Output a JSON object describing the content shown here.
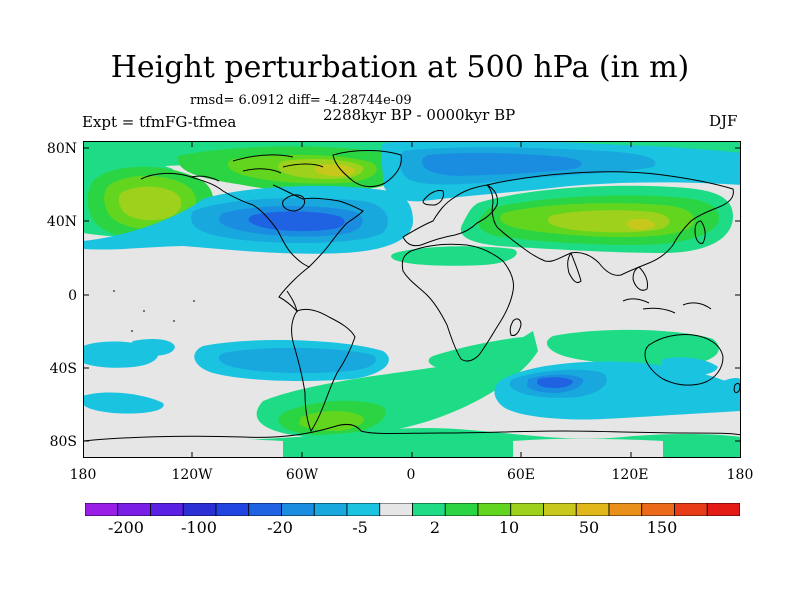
{
  "title": "Height perturbation at 500 hPa (in m)",
  "subtitle": {
    "stats": "rmsd= 6.0912 diff= -4.28744e-09",
    "period": "2288kyr BP - 0000kyr BP",
    "experiment": "Expt = tfmFG-tfmea",
    "season": "DJF"
  },
  "axes": {
    "y_ticks": [
      "80N",
      "40N",
      "0",
      "40S",
      "80S"
    ],
    "x_ticks": [
      "180",
      "120W",
      "60W",
      "0",
      "60E",
      "120E",
      "180"
    ]
  },
  "colorbar": {
    "labels": [
      "-200",
      "-100",
      "-20",
      "-5",
      "2",
      "10",
      "50",
      "150"
    ],
    "colors": [
      "#9a1ee6",
      "#7a1ee6",
      "#5a21e4",
      "#2b2fd4",
      "#2045e0",
      "#1f63e2",
      "#1b8de0",
      "#18a8de",
      "#1ac3e0",
      "#e6e6e6",
      "#1edc86",
      "#2bd443",
      "#62d61e",
      "#9dd11c",
      "#c8c81c",
      "#e0b61a",
      "#e8901a",
      "#ea6a1a",
      "#e83c18",
      "#e41a14"
    ]
  },
  "palette": {
    "ocean_bg": "#e6e6e6",
    "cyan": "#1ac3e0",
    "lightblue": "#18a8de",
    "blue": "#1f63e2",
    "darkblue": "#2045e0",
    "aqua_green": "#1edc86",
    "green": "#2bd443",
    "lime": "#62d61e",
    "yellow_green": "#9dd11c",
    "olive": "#c8c81c",
    "gold": "#e0b61a",
    "coast": "#000000"
  }
}
